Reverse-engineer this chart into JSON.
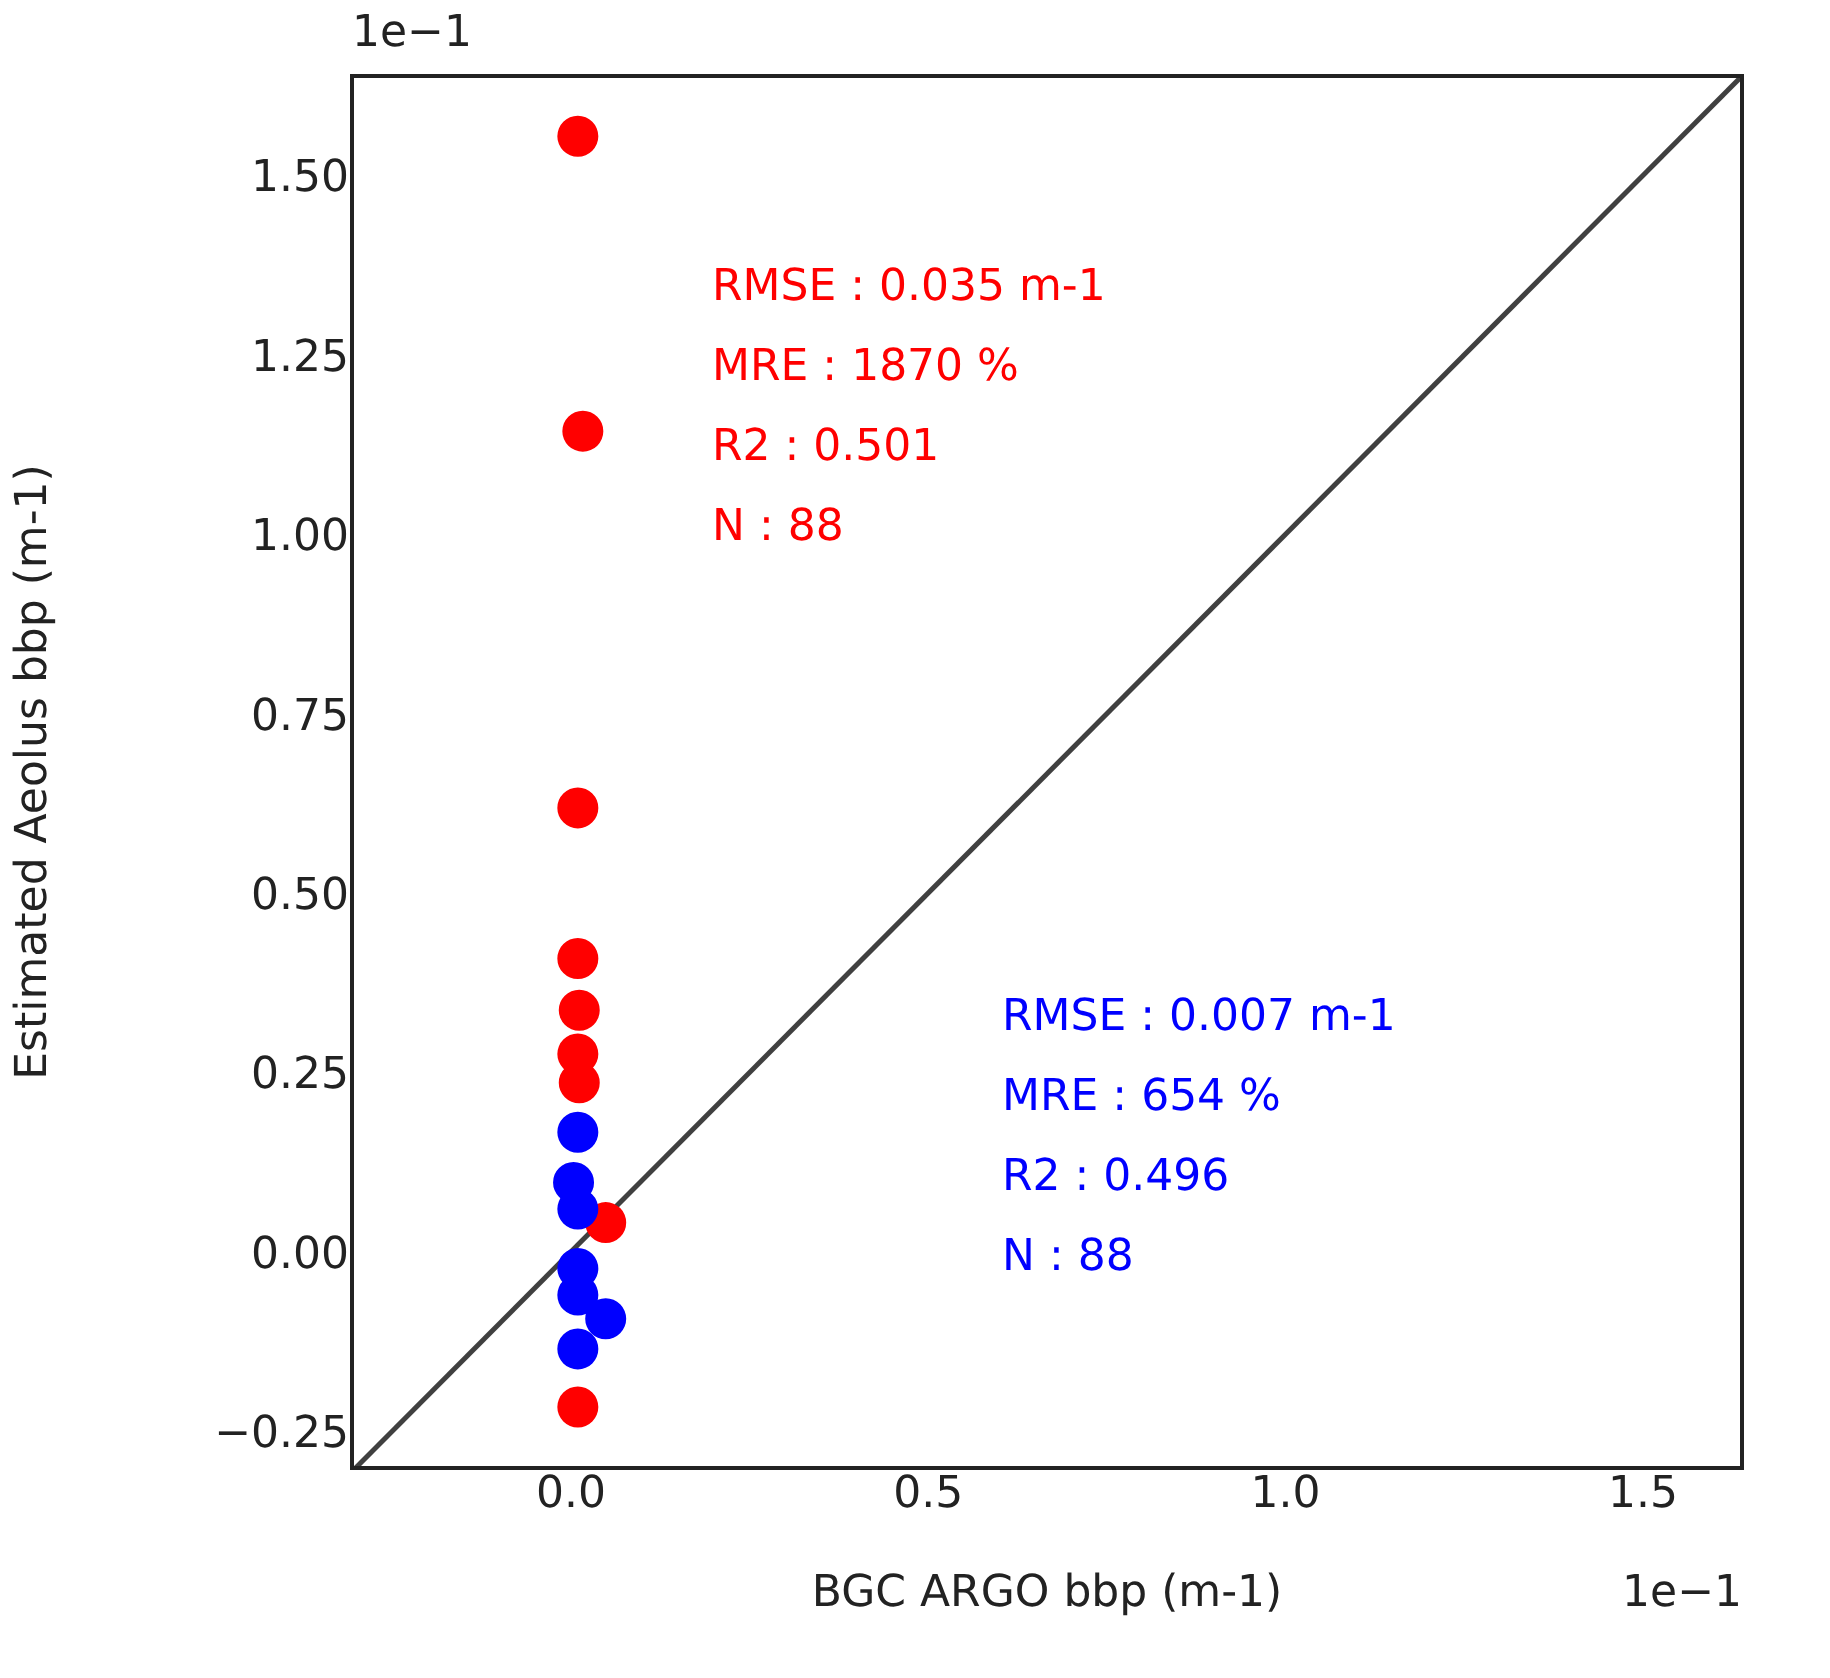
{
  "chart_data": {
    "type": "scatter",
    "xlabel": "BGC ARGO bbp (m-1)",
    "ylabel": "Estimated Aeolus bbp (m-1)",
    "xlim": [
      -0.305,
      1.64
    ],
    "ylim": [
      -0.3,
      1.64
    ],
    "xticks": [
      {
        "value": 0,
        "label": "0.0"
      },
      {
        "value": 0.5,
        "label": "0.5"
      },
      {
        "value": 1,
        "label": "1.0"
      },
      {
        "value": 1.5,
        "label": "1.5"
      }
    ],
    "yticks": [
      {
        "value": -0.25,
        "label": "−0.25"
      },
      {
        "value": 0,
        "label": "0.00"
      },
      {
        "value": 0.25,
        "label": "0.25"
      },
      {
        "value": 0.5,
        "label": "0.50"
      },
      {
        "value": 0.75,
        "label": "0.75"
      },
      {
        "value": 1,
        "label": "1.00"
      },
      {
        "value": 1.25,
        "label": "1.25"
      },
      {
        "value": 1.5,
        "label": "1.50"
      }
    ],
    "marker": "circle",
    "grid": false,
    "series": [
      {
        "type": "line",
        "marker": "none",
        "color": "#404040",
        "x": [
          -0.3,
          1.64
        ],
        "values": [
          -0.3,
          1.64
        ]
      },
      {
        "color": "#ff0000",
        "x": [
          0.011,
          0.018,
          0.011,
          0.011,
          0.013,
          0.011,
          0.013,
          0.05,
          0.011
        ],
        "values": [
          1.556,
          1.145,
          0.62,
          0.41,
          0.338,
          0.277,
          0.237,
          0.042,
          -0.215
        ]
      },
      {
        "color": "#0000ff",
        "x": [
          0.011,
          0.005,
          0.011,
          0.011,
          0.011,
          0.05,
          0.011
        ],
        "values": [
          0.168,
          0.098,
          0.061,
          -0.022,
          -0.059,
          -0.092,
          -0.134
        ]
      }
    ],
    "annotations": [
      "RMSE : 0.035 m-1",
      "MRE : 1870 %",
      "R2 : 0.501",
      "N : 88",
      "RMSE : 0.007 m-1",
      "MRE : 654 %",
      "R2 : 0.496",
      "N : 88",
      "1e−1",
      "1e−1"
    ]
  }
}
